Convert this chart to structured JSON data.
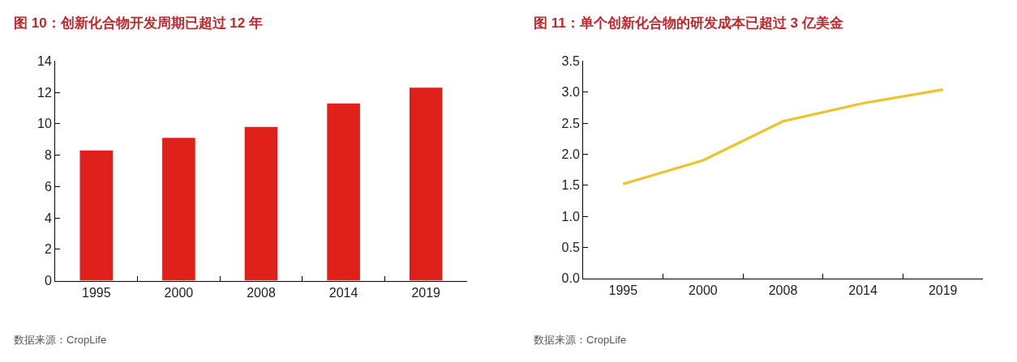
{
  "chart_data": [
    {
      "type": "bar",
      "title": "图 10：创新化合物开发周期已超过 12 年",
      "categories": [
        "1995",
        "2000",
        "2008",
        "2014",
        "2019"
      ],
      "values": [
        8.3,
        9.1,
        9.8,
        11.3,
        12.3
      ],
      "color": "#e0201b",
      "ylim": [
        0,
        14
      ],
      "yticks": [
        0,
        2,
        4,
        6,
        8,
        10,
        12,
        14
      ],
      "annotations": [
        "数据来源：CropLife"
      ]
    },
    {
      "type": "line",
      "title": "图 11：单个创新化合物的研发成本已超过 3 亿美金",
      "categories": [
        "1995",
        "2000",
        "2008",
        "2014",
        "2019"
      ],
      "values": [
        1.52,
        1.9,
        2.53,
        2.82,
        3.04
      ],
      "color": "#eec22f",
      "marker": "none",
      "line_style": "solid",
      "ylim": [
        0,
        3.5
      ],
      "yticks": [
        {
          "value": 0,
          "label": "0.0"
        },
        0.5,
        {
          "value": 1,
          "label": "1.0"
        },
        1.5,
        {
          "value": 2,
          "label": "2.0"
        },
        2.5,
        {
          "value": 3,
          "label": "3.0"
        },
        3.5
      ],
      "annotations": [
        "数据来源：CropLife"
      ]
    }
  ]
}
